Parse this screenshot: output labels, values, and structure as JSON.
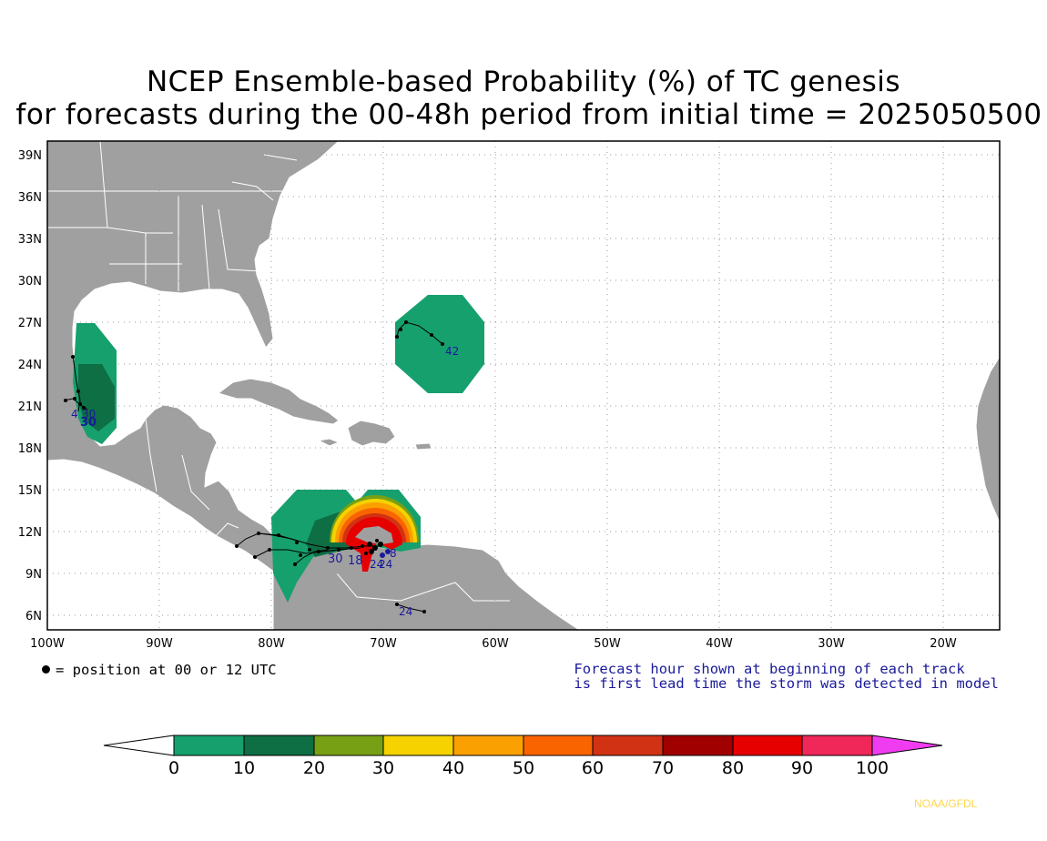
{
  "title": {
    "line1": "NCEP Ensemble-based Probability (%) of TC genesis",
    "line2": "for forecasts during the 00-48h period from initial time = 2025050500"
  },
  "map": {
    "lat_labels": [
      "39N",
      "36N",
      "33N",
      "30N",
      "27N",
      "24N",
      "21N",
      "18N",
      "15N",
      "12N",
      "9N",
      "6N"
    ],
    "lon_labels": [
      "100W",
      "90W",
      "80W",
      "70W",
      "60W",
      "50W",
      "40W",
      "30W",
      "20W"
    ],
    "land_color": "#a0a0a0",
    "border_color": "#ffffff",
    "grid": "dotted",
    "track_labels": [
      {
        "text": "42",
        "region": "subtropical-atlantic"
      },
      {
        "text": "4",
        "region": "gulf-west"
      },
      {
        "text": "30",
        "region": "gulf-west"
      },
      {
        "text": "30",
        "region": "gulf-west"
      },
      {
        "text": "30",
        "region": "caribbean"
      },
      {
        "text": "18",
        "region": "caribbean"
      },
      {
        "text": "24",
        "region": "caribbean"
      },
      {
        "text": "24",
        "region": "caribbean"
      },
      {
        "text": "8",
        "region": "caribbean"
      },
      {
        "text": "24",
        "region": "venezuela"
      }
    ]
  },
  "legend": {
    "dot_label": "= position at 00 or 12 UTC",
    "note_line1": "Forecast hour shown at beginning of each track",
    "note_line2": "is first lead time the storm was detected in model"
  },
  "colorbar": {
    "ticks": [
      "0",
      "10",
      "20",
      "30",
      "40",
      "50",
      "60",
      "70",
      "80",
      "90",
      "100"
    ],
    "colors": [
      "#ffffff",
      "#16a06e",
      "#0e6e44",
      "#78a014",
      "#f5d200",
      "#faa000",
      "#fa6400",
      "#d23214",
      "#a00000",
      "#e60000",
      "#f0285a",
      "#f03cf0"
    ]
  },
  "credit": "NOAA/GFDL"
}
